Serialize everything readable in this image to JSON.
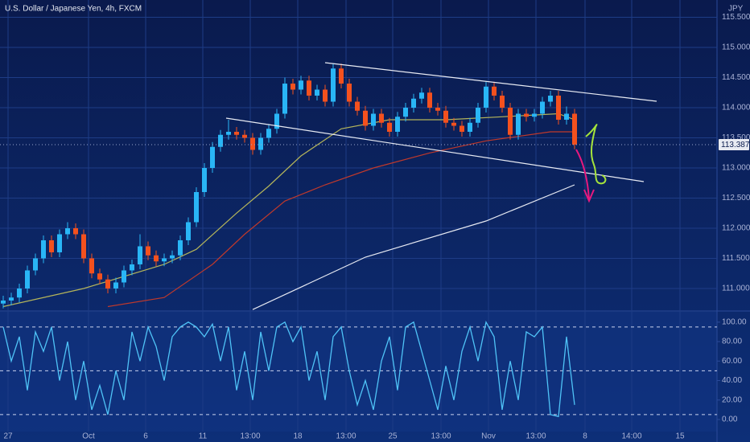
{
  "chart_data": [
    {
      "type": "candlestick",
      "title": "U.S. Dollar / Japanese Yen, 4h, FXCM",
      "y_axis_label": "JPY",
      "up_color": "#29b6f6",
      "down_color": "#f4511e",
      "open": [
        110.75,
        110.8,
        110.85,
        111.0,
        111.3,
        111.5,
        111.8,
        111.6,
        111.9,
        112.0,
        111.9,
        111.5,
        111.25,
        111.15,
        111.0,
        111.1,
        111.3,
        111.4,
        111.7,
        111.55,
        111.45,
        111.5,
        111.55,
        111.8,
        112.1,
        112.6,
        113.0,
        113.35,
        113.55,
        113.6,
        113.55,
        113.5,
        113.3,
        113.5,
        113.65,
        113.9,
        114.4,
        114.3,
        114.45,
        114.2,
        114.3,
        114.1,
        114.65,
        114.4,
        114.1,
        113.95,
        113.7,
        113.9,
        113.75,
        113.6,
        113.85,
        114.0,
        114.15,
        114.25,
        114.0,
        113.95,
        113.75,
        113.7,
        113.6,
        113.75,
        114.0,
        114.35,
        114.2,
        114.0,
        113.55,
        113.9,
        113.85,
        113.9,
        114.1,
        114.2,
        113.8,
        113.9
      ],
      "high": [
        110.88,
        110.93,
        111.08,
        111.38,
        111.58,
        111.88,
        111.88,
        111.98,
        112.1,
        112.08,
        111.98,
        111.58,
        111.33,
        111.23,
        111.18,
        111.38,
        111.48,
        111.9,
        111.78,
        111.63,
        111.58,
        111.63,
        111.88,
        112.18,
        112.68,
        113.08,
        113.43,
        113.63,
        113.8,
        113.68,
        113.63,
        113.58,
        113.58,
        113.73,
        113.98,
        114.5,
        114.48,
        114.53,
        114.53,
        114.38,
        114.38,
        114.73,
        114.73,
        114.48,
        114.18,
        114.03,
        113.98,
        113.98,
        113.83,
        113.93,
        114.08,
        114.23,
        114.33,
        114.33,
        114.08,
        114.03,
        113.83,
        113.78,
        113.83,
        114.08,
        114.43,
        114.43,
        114.28,
        114.08,
        113.98,
        113.98,
        113.98,
        114.18,
        114.28,
        114.28,
        114.02,
        113.98
      ],
      "low": [
        110.67,
        110.72,
        110.77,
        110.92,
        111.22,
        111.42,
        111.52,
        111.52,
        111.82,
        111.82,
        111.42,
        111.17,
        111.07,
        110.92,
        110.92,
        111.02,
        111.22,
        111.32,
        111.47,
        111.37,
        111.37,
        111.42,
        111.47,
        111.72,
        112.02,
        112.52,
        112.92,
        113.27,
        113.47,
        113.47,
        113.42,
        113.22,
        113.22,
        113.42,
        113.57,
        113.82,
        114.22,
        114.22,
        114.12,
        114.12,
        114.02,
        114.02,
        114.32,
        114.02,
        113.87,
        113.62,
        113.62,
        113.67,
        113.52,
        113.52,
        113.77,
        113.92,
        114.07,
        113.92,
        113.87,
        113.67,
        113.62,
        113.52,
        113.52,
        113.67,
        113.92,
        114.12,
        113.92,
        113.47,
        113.47,
        113.77,
        113.77,
        113.82,
        114.02,
        113.72,
        113.72,
        113.31
      ],
      "close": [
        110.8,
        110.85,
        111.0,
        111.3,
        111.5,
        111.8,
        111.6,
        111.9,
        112.0,
        111.9,
        111.5,
        111.25,
        111.15,
        111.0,
        111.1,
        111.3,
        111.4,
        111.7,
        111.55,
        111.45,
        111.5,
        111.55,
        111.8,
        112.1,
        112.6,
        113.0,
        113.35,
        113.55,
        113.6,
        113.55,
        113.5,
        113.3,
        113.5,
        113.65,
        113.9,
        114.4,
        114.3,
        114.45,
        114.2,
        114.3,
        114.1,
        114.65,
        114.4,
        114.1,
        113.95,
        113.7,
        113.9,
        113.75,
        113.6,
        113.85,
        114.0,
        114.15,
        114.25,
        114.0,
        113.95,
        113.75,
        113.7,
        113.6,
        113.75,
        114.0,
        114.35,
        114.2,
        114.0,
        113.55,
        113.9,
        113.85,
        113.9,
        114.1,
        114.2,
        113.8,
        113.9,
        113.387
      ],
      "overlays": [
        {
          "color": "#b5b55a",
          "x": [
            0,
            10,
            20,
            24,
            29,
            33,
            37,
            42,
            48,
            55,
            62,
            69,
            71
          ],
          "values": [
            110.7,
            111.0,
            111.4,
            111.65,
            112.25,
            112.7,
            113.2,
            113.65,
            113.8,
            113.8,
            113.85,
            113.9,
            113.8
          ]
        },
        {
          "color": "#c0392b",
          "x": [
            13,
            20,
            26,
            30,
            35,
            40,
            46,
            53,
            60,
            68,
            71
          ],
          "values": [
            110.7,
            110.85,
            111.4,
            111.9,
            112.45,
            112.72,
            113.0,
            113.25,
            113.45,
            113.6,
            113.6
          ]
        },
        {
          "color": "#e6e9f2",
          "x": [
            31,
            45,
            60,
            71
          ],
          "values": [
            110.65,
            111.52,
            112.12,
            112.72
          ]
        }
      ],
      "xlim": [
        -0.4,
        88.7
      ],
      "xticks": [
        {
          "value": 0.6,
          "label": "27"
        },
        {
          "value": 10.6,
          "label": "Oct"
        },
        {
          "value": 17.7,
          "label": "6"
        },
        {
          "value": 24.8,
          "label": "11"
        },
        {
          "value": 30.7,
          "label": "13:00"
        },
        {
          "value": 36.6,
          "label": "18"
        },
        {
          "value": 42.6,
          "label": "13:00"
        },
        {
          "value": 48.4,
          "label": "25"
        },
        {
          "value": 54.4,
          "label": "13:00"
        },
        {
          "value": 60.3,
          "label": "Nov"
        },
        {
          "value": 66.2,
          "label": "13:00"
        },
        {
          "value": 72.3,
          "label": "8"
        },
        {
          "value": 78.1,
          "label": "14:00"
        },
        {
          "value": 84.1,
          "label": "15"
        }
      ],
      "ylim": [
        110.653,
        115.787
      ],
      "yticks": [
        {
          "value": 111,
          "label": "111.000"
        },
        {
          "value": 111.5,
          "label": "111.500"
        },
        {
          "value": 112,
          "label": "112.000"
        },
        {
          "value": 112.5,
          "label": "112.500"
        },
        {
          "value": 113,
          "label": "113.000"
        },
        {
          "value": 113.5,
          "label": "113.500"
        },
        {
          "value": 114,
          "label": "114.000"
        },
        {
          "value": 114.5,
          "label": "114.500"
        },
        {
          "value": 115,
          "label": "115.000"
        },
        {
          "value": 115.5,
          "label": "115.500"
        }
      ],
      "grid": true
    },
    {
      "type": "line",
      "color": "#4fc3f7",
      "values": [
        95,
        60,
        85,
        30,
        90,
        70,
        95,
        40,
        80,
        20,
        60,
        10,
        35,
        5,
        50,
        20,
        90,
        60,
        95,
        75,
        40,
        85,
        95,
        100,
        95,
        85,
        98,
        60,
        95,
        30,
        70,
        20,
        90,
        50,
        95,
        100,
        80,
        95,
        40,
        70,
        20,
        85,
        95,
        50,
        15,
        40,
        10,
        60,
        85,
        30,
        95,
        100,
        70,
        40,
        10,
        55,
        20,
        70,
        95,
        60,
        100,
        85,
        10,
        60,
        20,
        90,
        85,
        95,
        5,
        3,
        85,
        15
      ],
      "ylim": [
        -12.4,
        110.6
      ],
      "yticks": [
        {
          "value": 0,
          "label": "0.00"
        },
        {
          "value": 20,
          "label": "20.00"
        },
        {
          "value": 40,
          "label": "40.00"
        },
        {
          "value": 60,
          "label": "60.00"
        },
        {
          "value": 80,
          "label": "80.00"
        },
        {
          "value": 100,
          "label": "100.00"
        }
      ],
      "levels": [
        5,
        50,
        95
      ]
    }
  ]
}
